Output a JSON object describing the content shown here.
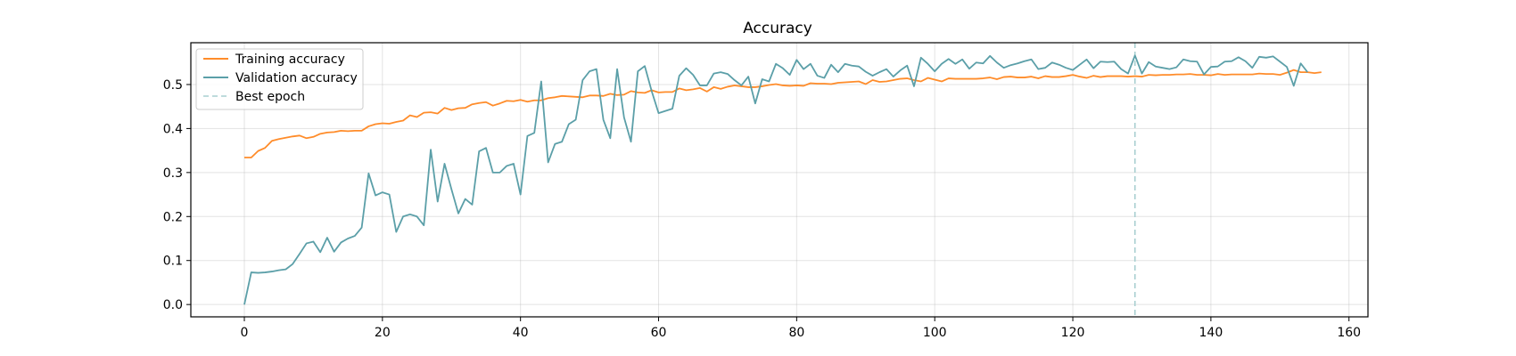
{
  "chart_data": {
    "type": "line",
    "title": "Accuracy",
    "xlabel": "",
    "ylabel": "",
    "xlim": [
      -7.75,
      162.75
    ],
    "ylim": [
      -0.028,
      0.595
    ],
    "xticks": [
      0,
      20,
      40,
      60,
      80,
      100,
      120,
      140,
      160
    ],
    "yticks": [
      0.0,
      0.1,
      0.2,
      0.3,
      0.4,
      0.5
    ],
    "grid": true,
    "legend_position": "upper-left",
    "series": [
      {
        "name": "Training accuracy",
        "color": "#ff8c2a",
        "style": "solid",
        "y": [
          0.334,
          0.334,
          0.349,
          0.356,
          0.372,
          0.376,
          0.379,
          0.382,
          0.384,
          0.378,
          0.381,
          0.388,
          0.391,
          0.392,
          0.395,
          0.394,
          0.395,
          0.395,
          0.405,
          0.41,
          0.412,
          0.411,
          0.415,
          0.418,
          0.43,
          0.426,
          0.436,
          0.437,
          0.434,
          0.447,
          0.442,
          0.446,
          0.447,
          0.455,
          0.458,
          0.46,
          0.452,
          0.457,
          0.463,
          0.462,
          0.465,
          0.461,
          0.464,
          0.464,
          0.469,
          0.471,
          0.474,
          0.473,
          0.472,
          0.471,
          0.475,
          0.475,
          0.474,
          0.479,
          0.476,
          0.477,
          0.485,
          0.482,
          0.481,
          0.487,
          0.482,
          0.483,
          0.483,
          0.491,
          0.487,
          0.489,
          0.492,
          0.484,
          0.494,
          0.49,
          0.495,
          0.498,
          0.496,
          0.494,
          0.494,
          0.496,
          0.499,
          0.501,
          0.498,
          0.497,
          0.498,
          0.497,
          0.503,
          0.502,
          0.502,
          0.501,
          0.504,
          0.505,
          0.506,
          0.507,
          0.501,
          0.51,
          0.506,
          0.507,
          0.51,
          0.513,
          0.514,
          0.51,
          0.507,
          0.515,
          0.511,
          0.507,
          0.514,
          0.513,
          0.513,
          0.513,
          0.513,
          0.514,
          0.516,
          0.512,
          0.517,
          0.518,
          0.516,
          0.516,
          0.518,
          0.514,
          0.519,
          0.517,
          0.517,
          0.519,
          0.522,
          0.518,
          0.515,
          0.52,
          0.517,
          0.519,
          0.519,
          0.519,
          0.518,
          0.519,
          0.518,
          0.522,
          0.521,
          0.522,
          0.522,
          0.523,
          0.523,
          0.524,
          0.522,
          0.522,
          0.521,
          0.524,
          0.522,
          0.523,
          0.523,
          0.523,
          0.523,
          0.525,
          0.524,
          0.524,
          0.522,
          0.527,
          0.533,
          0.528,
          0.528,
          0.526,
          0.528
        ]
      },
      {
        "name": "Validation accuracy",
        "color": "#5b9fa8",
        "style": "solid",
        "y": [
          0.0,
          0.073,
          0.072,
          0.073,
          0.075,
          0.078,
          0.08,
          0.092,
          0.115,
          0.139,
          0.143,
          0.119,
          0.152,
          0.12,
          0.141,
          0.15,
          0.156,
          0.175,
          0.298,
          0.248,
          0.255,
          0.25,
          0.165,
          0.2,
          0.205,
          0.2,
          0.18,
          0.352,
          0.234,
          0.32,
          0.262,
          0.207,
          0.24,
          0.227,
          0.348,
          0.356,
          0.3,
          0.3,
          0.315,
          0.32,
          0.25,
          0.383,
          0.39,
          0.507,
          0.323,
          0.365,
          0.37,
          0.41,
          0.42,
          0.51,
          0.53,
          0.535,
          0.42,
          0.378,
          0.535,
          0.425,
          0.37,
          0.53,
          0.542,
          0.485,
          0.435,
          0.44,
          0.445,
          0.52,
          0.537,
          0.522,
          0.498,
          0.498,
          0.525,
          0.528,
          0.524,
          0.51,
          0.498,
          0.518,
          0.457,
          0.512,
          0.507,
          0.547,
          0.537,
          0.522,
          0.556,
          0.535,
          0.547,
          0.52,
          0.515,
          0.545,
          0.528,
          0.547,
          0.543,
          0.541,
          0.529,
          0.52,
          0.528,
          0.535,
          0.518,
          0.532,
          0.543,
          0.496,
          0.561,
          0.547,
          0.53,
          0.547,
          0.558,
          0.547,
          0.557,
          0.536,
          0.55,
          0.548,
          0.565,
          0.55,
          0.538,
          0.544,
          0.548,
          0.553,
          0.557,
          0.535,
          0.538,
          0.55,
          0.545,
          0.538,
          0.533,
          0.545,
          0.557,
          0.537,
          0.552,
          0.551,
          0.552,
          0.535,
          0.525,
          0.566,
          0.525,
          0.551,
          0.541,
          0.538,
          0.535,
          0.539,
          0.557,
          0.553,
          0.552,
          0.523,
          0.54,
          0.541,
          0.552,
          0.553,
          0.562,
          0.553,
          0.538,
          0.563,
          0.561,
          0.564,
          0.552,
          0.54,
          0.497,
          0.548,
          0.528
        ]
      }
    ],
    "best_epoch": {
      "name": "Best epoch",
      "x": 129,
      "color": "#a8cfd0",
      "style": "dashed"
    }
  }
}
